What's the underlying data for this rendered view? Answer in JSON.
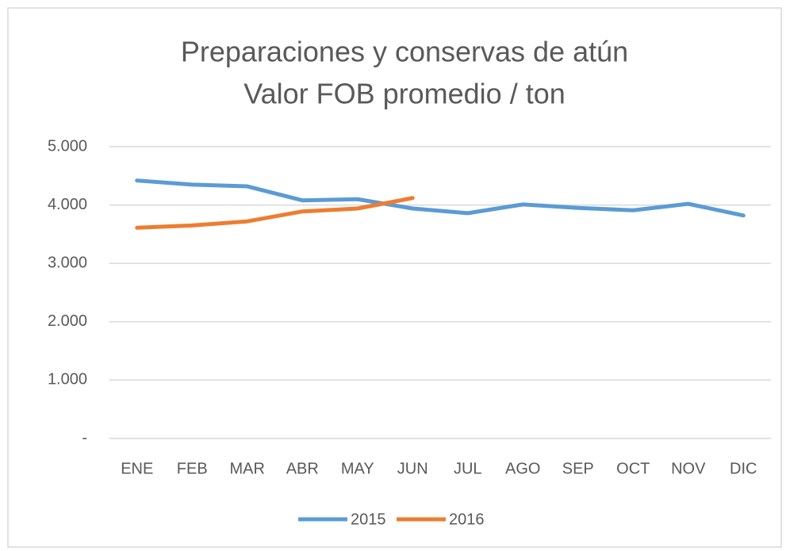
{
  "chart_data": {
    "type": "line",
    "title": "Preparaciones y conservas de atún",
    "subtitle": "Valor FOB promedio / ton",
    "categories": [
      "ENE",
      "FEB",
      "MAR",
      "ABR",
      "MAY",
      "JUN",
      "JUL",
      "AGO",
      "SEP",
      "OCT",
      "NOV",
      "DIC"
    ],
    "series": [
      {
        "name": "2015",
        "color": "#5b9bd5",
        "values": [
          4420,
          4350,
          4320,
          4080,
          4100,
          3940,
          3860,
          4010,
          3950,
          3910,
          4020,
          3820
        ]
      },
      {
        "name": "2016",
        "color": "#ed7d31",
        "values": [
          3610,
          3650,
          3720,
          3890,
          3940,
          4120,
          null,
          null,
          null,
          null,
          null,
          null
        ]
      }
    ],
    "ylim": [
      0,
      5000
    ],
    "yticks": [
      {
        "value": 0,
        "label": "-"
      },
      {
        "value": 1000,
        "label": "1.000"
      },
      {
        "value": 2000,
        "label": "2.000"
      },
      {
        "value": 3000,
        "label": "3.000"
      },
      {
        "value": 4000,
        "label": "4.000"
      },
      {
        "value": 5000,
        "label": "5.000"
      }
    ],
    "grid": true,
    "legend": "bottom"
  }
}
